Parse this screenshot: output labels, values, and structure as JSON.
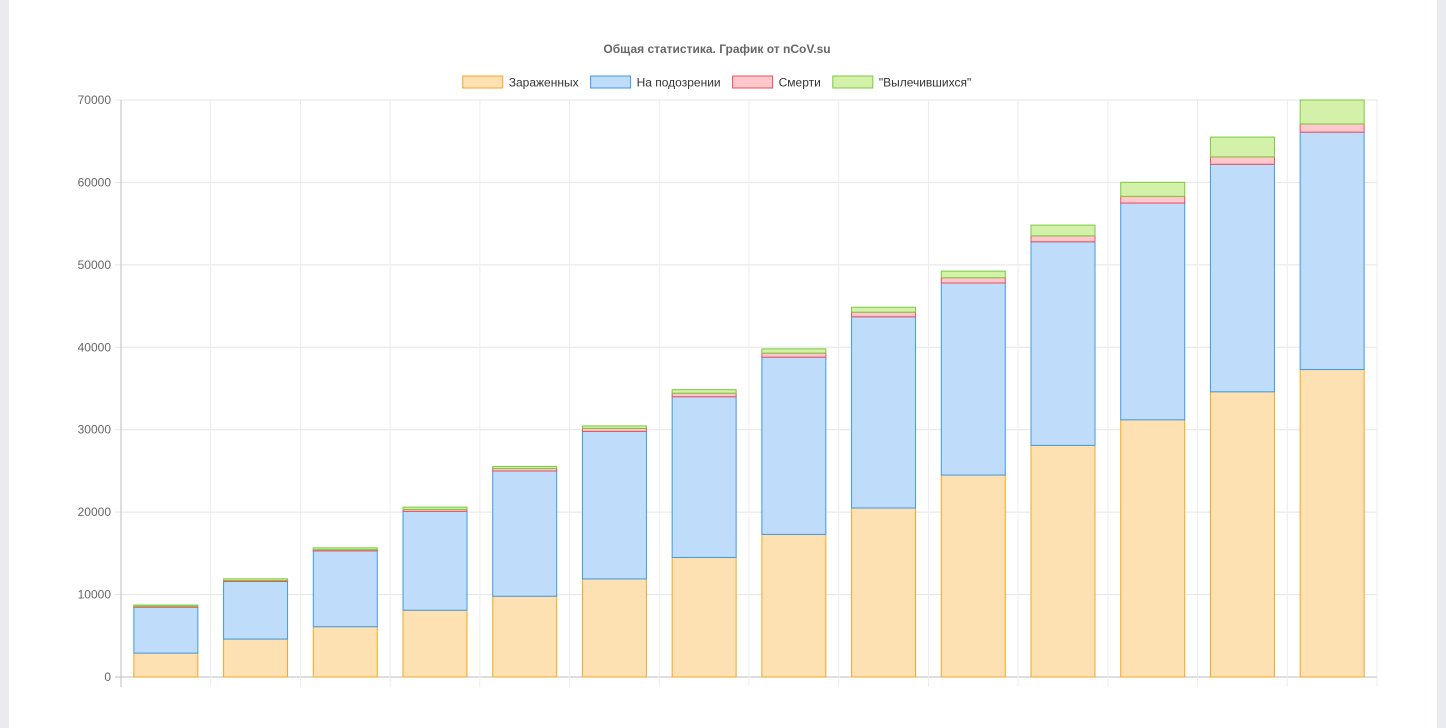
{
  "chart_data": {
    "type": "bar",
    "stacked": true,
    "title": "Общая статистика. График от nCoV.su",
    "xlabel": "",
    "ylabel": "",
    "categories": [
      "",
      "",
      "",
      "",
      "",
      "",
      "",
      "",
      "",
      "",
      "",
      "",
      "",
      ""
    ],
    "ylim": [
      0,
      70000
    ],
    "yticks": [
      0,
      10000,
      20000,
      30000,
      40000,
      50000,
      60000,
      70000
    ],
    "grid": true,
    "legend": "top-center",
    "series": [
      {
        "name": "Зараженных",
        "fill": "#fde1b3",
        "stroke": "#f5a623",
        "values": [
          2900,
          4600,
          6100,
          8100,
          9800,
          11900,
          14500,
          17300,
          20500,
          24500,
          28100,
          31200,
          34600,
          37300
        ]
      },
      {
        "name": "На подозрении",
        "fill": "#c0dcfb",
        "stroke": "#3d9be9",
        "values": [
          5600,
          7000,
          9200,
          12000,
          15200,
          17900,
          19500,
          21500,
          23200,
          23300,
          24700,
          26300,
          27600,
          28800
        ]
      },
      {
        "name": "Смерти",
        "fill": "#ffc8cc",
        "stroke": "#ee4e5a",
        "values": [
          80,
          110,
          150,
          230,
          300,
          360,
          430,
          490,
          560,
          640,
          720,
          810,
          900,
          1000
        ]
      },
      {
        "name": "\"Вылечившихся\"",
        "fill": "#d4f1a9",
        "stroke": "#7ac943",
        "values": [
          150,
          200,
          220,
          280,
          250,
          300,
          430,
          520,
          600,
          800,
          1300,
          1700,
          2400,
          2900
        ]
      }
    ]
  }
}
